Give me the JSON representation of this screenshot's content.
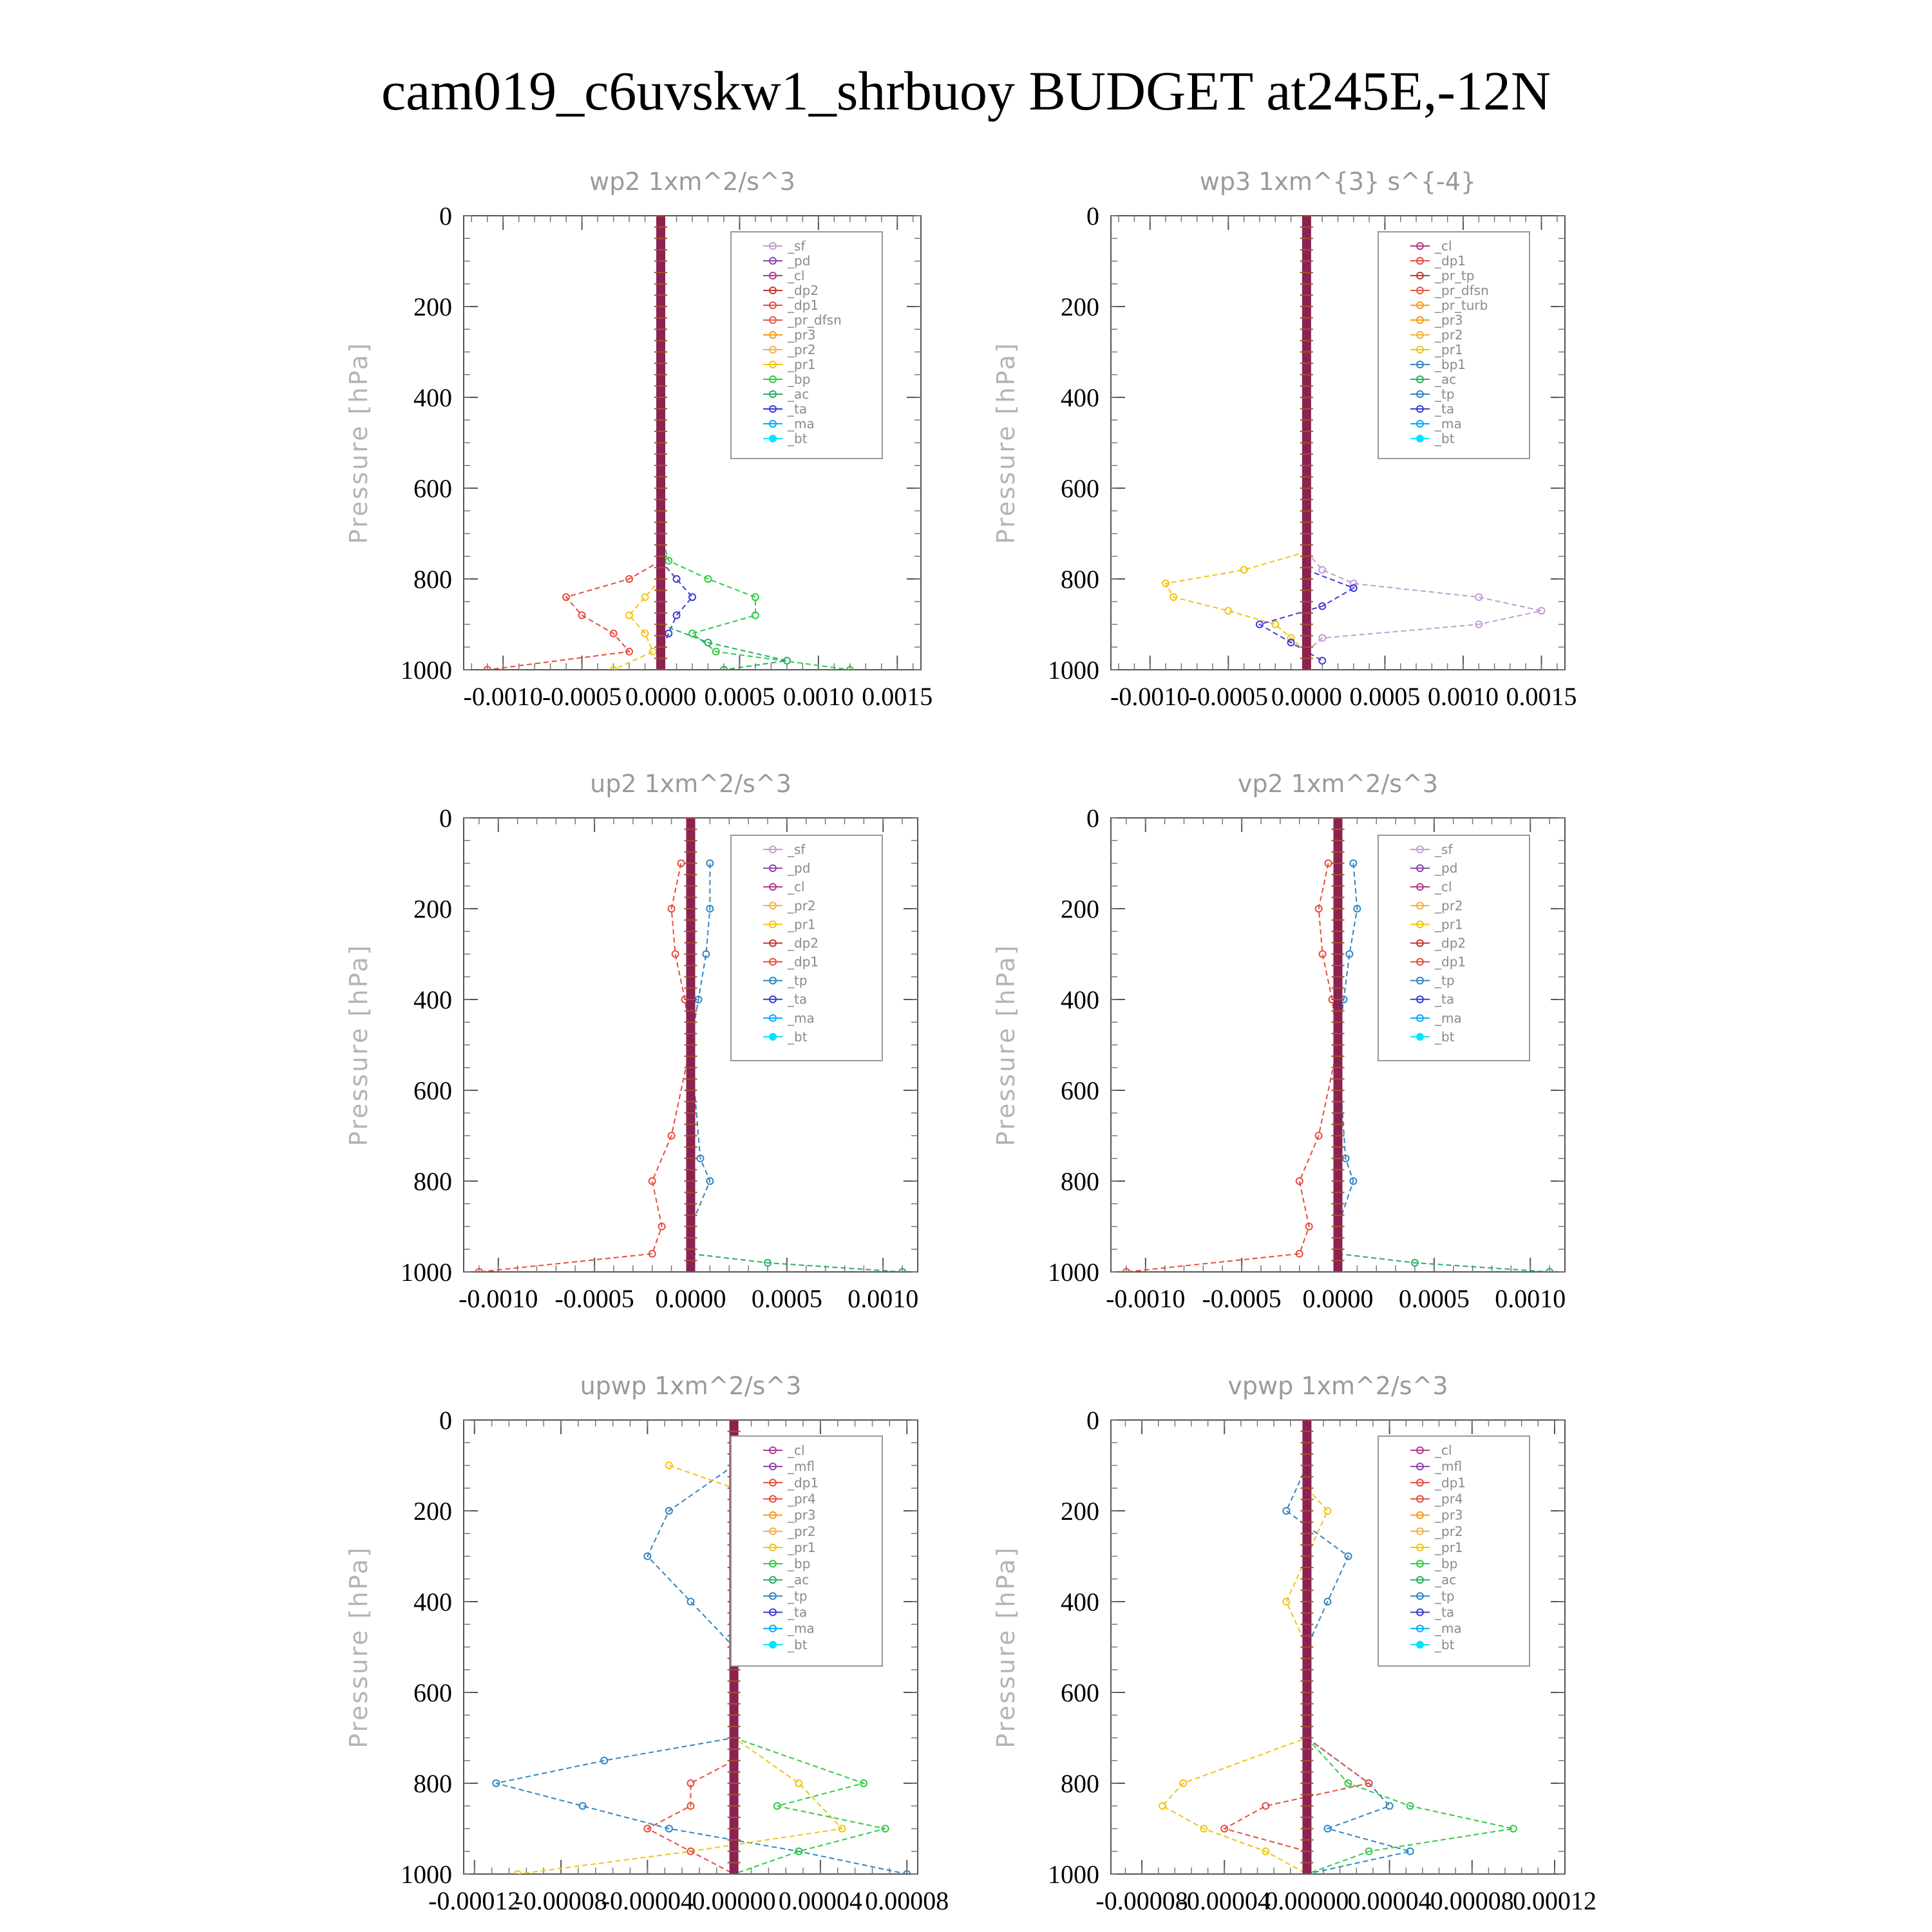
{
  "figure": {
    "title": "cam019_c6uvskw1_shrbuoy  BUDGET at245E,-12N"
  },
  "colors": {
    "_sf": "#c39bd3",
    "_pd": "#8e44ad",
    "_cl": "#b03a8c",
    "_dp2": "#c0392b",
    "_dp1": "#e74c3c",
    "_pr_dfsn": "#e6584a",
    "_pr3": "#f39c12",
    "_pr2": "#f5b041",
    "_pr1": "#f1c40f",
    "_bp": "#2ecc40",
    "_ac": "#27ae60",
    "_tp": "#2e86c1",
    "_ta": "#3b3bd6",
    "_ma": "#00aaff",
    "_bt": "#00e5ff"
  },
  "chart_data": [
    {
      "type": "line",
      "title": "wp2  1xm^2/s^3",
      "ylabel": "Pressure [hPa]",
      "xlim": [
        -0.00125,
        0.00165
      ],
      "ylim": [
        1000,
        0
      ],
      "yticks": [
        0,
        200,
        400,
        600,
        800,
        1000
      ],
      "ytick_labels": [
        "0",
        "200",
        "400",
        "600",
        "800",
        "1000"
      ],
      "xticks": [
        -0.001,
        -0.0005,
        0.0,
        0.0005,
        0.001,
        0.0015
      ],
      "xtick_labels": [
        "-0.0010",
        "-0.0005",
        "0.0000",
        "0.0005",
        "0.0010",
        "0.0015"
      ],
      "legend": [
        "_sf",
        "_pd",
        "_cl",
        "_dp2",
        "_dp1",
        "_pr_dfsn",
        "_pr3",
        "_pr2",
        "_pr1",
        "_bp",
        "_ac",
        "_ta",
        "_ma",
        "_bt"
      ],
      "series": [
        {
          "name": "_bp",
          "y": [
            700,
            760,
            800,
            840,
            880,
            920,
            960,
            1000
          ],
          "x": [
            0.0,
            5e-05,
            0.0003,
            0.0006,
            0.0006,
            0.0002,
            0.00035,
            0.0012
          ]
        },
        {
          "name": "_dp1",
          "y": [
            760,
            800,
            840,
            880,
            920,
            960,
            1000
          ],
          "x": [
            0.0,
            -0.0002,
            -0.0006,
            -0.0005,
            -0.0003,
            -0.0002,
            -0.0011
          ]
        },
        {
          "name": "_pr1",
          "y": [
            800,
            840,
            880,
            920,
            960,
            1000
          ],
          "x": [
            0.0,
            -0.0001,
            -0.0002,
            -0.0001,
            -5e-05,
            -0.0003
          ]
        },
        {
          "name": "_ta",
          "y": [
            760,
            800,
            840,
            880,
            920,
            960,
            1000
          ],
          "x": [
            0.0,
            0.0001,
            0.0002,
            0.0001,
            5e-05,
            0.0,
            0.0
          ]
        },
        {
          "name": "_ac",
          "y": [
            900,
            940,
            980,
            1000
          ],
          "x": [
            0.0,
            0.0003,
            0.0008,
            0.0004
          ]
        }
      ]
    },
    {
      "type": "line",
      "title": "wp3  1xm^{3} s^{-4}",
      "ylabel": "Pressure [hPa]",
      "xlim": [
        -0.00125,
        0.00165
      ],
      "ylim": [
        1000,
        0
      ],
      "yticks": [
        0,
        200,
        400,
        600,
        800,
        1000
      ],
      "ytick_labels": [
        "0",
        "200",
        "400",
        "600",
        "800",
        "1000"
      ],
      "xticks": [
        -0.001,
        -0.0005,
        0.0,
        0.0005,
        0.001,
        0.0015
      ],
      "xtick_labels": [
        "-0.0010",
        "-0.0005",
        "0.0000",
        "0.0005",
        "0.0010",
        "0.0015"
      ],
      "legend": [
        "_cl",
        "_dp1",
        "_pr_tp",
        "_pr_dfsn",
        "_pr_turb",
        "_pr3",
        "_pr2",
        "_pr1",
        "_bp1",
        "_ac",
        "_tp",
        "_ta",
        "_ma",
        "_bt"
      ],
      "series": [
        {
          "name": "_bp1",
          "y": [
            740,
            780,
            810,
            840,
            870,
            900,
            930,
            960,
            1000
          ],
          "x": [
            0.0,
            0.0001,
            0.0003,
            0.0011,
            0.0015,
            0.0011,
            0.0001,
            0.0,
            0.0
          ]
        },
        {
          "name": "_pr1",
          "y": [
            740,
            780,
            810,
            840,
            870,
            900,
            930,
            960,
            1000
          ],
          "x": [
            0.0,
            -0.0004,
            -0.0009,
            -0.00085,
            -0.0005,
            -0.0002,
            -0.0001,
            0.0,
            0.0
          ]
        },
        {
          "name": "_ta",
          "y": [
            780,
            820,
            860,
            900,
            940,
            980
          ],
          "x": [
            0.0,
            0.0003,
            0.0001,
            -0.0003,
            -0.0001,
            0.0001
          ]
        }
      ]
    },
    {
      "type": "line",
      "title": "up2  1xm^2/s^3",
      "ylabel": "Pressure [hPa]",
      "xlim": [
        -0.00118,
        0.00118
      ],
      "ylim": [
        1000,
        0
      ],
      "yticks": [
        0,
        200,
        400,
        600,
        800,
        1000
      ],
      "ytick_labels": [
        "0",
        "200",
        "400",
        "600",
        "800",
        "1000"
      ],
      "xticks": [
        -0.001,
        -0.0005,
        0.0,
        0.0005,
        0.001
      ],
      "xtick_labels": [
        "-0.0010",
        "-0.0005",
        "0.0000",
        "0.0005",
        "0.0010"
      ],
      "legend": [
        "_sf",
        "_pd",
        "_cl",
        "_pr2",
        "_pr1",
        "_dp2",
        "_dp1",
        "_tp",
        "_ta",
        "_ma",
        "_bt"
      ],
      "series": [
        {
          "name": "_dp1",
          "y": [
            100,
            200,
            300,
            400,
            500,
            700,
            800,
            900,
            960,
            1000
          ],
          "x": [
            -5e-05,
            -0.0001,
            -8e-05,
            -3e-05,
            0.0,
            -0.0001,
            -0.0002,
            -0.00015,
            -0.0002,
            -0.0011
          ]
        },
        {
          "name": "_tp",
          "y": [
            100,
            200,
            300,
            400,
            500,
            750,
            800,
            900,
            1000
          ],
          "x": [
            0.0001,
            0.0001,
            8e-05,
            4e-05,
            0.0,
            5e-05,
            0.0001,
            0.0,
            0.0
          ]
        },
        {
          "name": "_ac",
          "y": [
            960,
            980,
            1000
          ],
          "x": [
            0.0,
            0.0004,
            0.0011
          ]
        }
      ]
    },
    {
      "type": "line",
      "title": "vp2  1xm^2/s^3",
      "ylabel": "Pressure [hPa]",
      "xlim": [
        -0.00118,
        0.00118
      ],
      "ylim": [
        1000,
        0
      ],
      "yticks": [
        0,
        200,
        400,
        600,
        800,
        1000
      ],
      "ytick_labels": [
        "0",
        "200",
        "400",
        "600",
        "800",
        "1000"
      ],
      "xticks": [
        -0.001,
        -0.0005,
        0.0,
        0.0005,
        0.001
      ],
      "xtick_labels": [
        "-0.0010",
        "-0.0005",
        "0.0000",
        "0.0005",
        "0.0010"
      ],
      "legend": [
        "_sf",
        "_pd",
        "_cl",
        "_pr2",
        "_pr1",
        "_dp2",
        "_dp1",
        "_tp",
        "_ta",
        "_ma",
        "_bt"
      ],
      "series": [
        {
          "name": "_dp1",
          "y": [
            100,
            200,
            300,
            400,
            500,
            700,
            800,
            900,
            960,
            1000
          ],
          "x": [
            -5e-05,
            -0.0001,
            -8e-05,
            -3e-05,
            0.0,
            -0.0001,
            -0.0002,
            -0.00015,
            -0.0002,
            -0.0011
          ]
        },
        {
          "name": "_tp",
          "y": [
            100,
            200,
            300,
            400,
            500,
            750,
            800,
            900,
            1000
          ],
          "x": [
            8e-05,
            0.0001,
            6e-05,
            3e-05,
            0.0,
            4e-05,
            8e-05,
            0.0,
            0.0
          ]
        },
        {
          "name": "_ac",
          "y": [
            960,
            980,
            1000
          ],
          "x": [
            0.0,
            0.0004,
            0.0011
          ]
        }
      ]
    },
    {
      "type": "line",
      "title": "upwp  1xm^2/s^3",
      "ylabel": "Pressure [hPa]",
      "xlim": [
        -0.000125,
        8.5e-05
      ],
      "ylim": [
        1000,
        0
      ],
      "yticks": [
        0,
        200,
        400,
        600,
        800,
        1000
      ],
      "ytick_labels": [
        "0",
        "200",
        "400",
        "600",
        "800",
        "1000"
      ],
      "xticks": [
        -0.00012,
        -8e-05,
        -4e-05,
        0.0,
        4e-05,
        8e-05
      ],
      "xtick_labels": [
        "-0.00012",
        "-0.00008",
        "-0.00004",
        "0.00000",
        "0.00004",
        "0.00008"
      ],
      "legend": [
        "_cl",
        "_mfl",
        "_dp1",
        "_pr4",
        "_pr3",
        "_pr2",
        "_pr1",
        "_bp",
        "_ac",
        "_tp",
        "_ta",
        "_ma",
        "_bt"
      ],
      "series": [
        {
          "name": "_tp",
          "y": [
            100,
            200,
            300,
            400,
            500,
            700,
            750,
            800,
            850,
            900,
            950,
            1000
          ],
          "x": [
            0.0,
            -3e-05,
            -4e-05,
            -2e-05,
            0.0,
            0.0,
            -6e-05,
            -0.00011,
            -7e-05,
            -3e-05,
            3e-05,
            8e-05
          ]
        },
        {
          "name": "_pr1",
          "y": [
            100,
            150,
            200,
            300,
            400,
            500,
            700,
            800,
            900,
            950,
            1000
          ],
          "x": [
            -3e-05,
            0.0,
            2e-05,
            2e-05,
            1e-05,
            0.0,
            0.0,
            3e-05,
            5e-05,
            -2e-05,
            -0.0001
          ]
        },
        {
          "name": "_bp",
          "y": [
            700,
            800,
            850,
            900,
            950,
            1000
          ],
          "x": [
            0.0,
            6e-05,
            2e-05,
            7e-05,
            3e-05,
            0.0
          ]
        },
        {
          "name": "_dp1",
          "y": [
            750,
            800,
            850,
            900,
            950,
            1000
          ],
          "x": [
            0.0,
            -2e-05,
            -2e-05,
            -4e-05,
            -2e-05,
            0.0
          ]
        }
      ]
    },
    {
      "type": "line",
      "title": "vpwp  1xm^2/s^3",
      "ylabel": "Pressure [hPa]",
      "xlim": [
        -9.5e-05,
        0.000125
      ],
      "ylim": [
        1000,
        0
      ],
      "yticks": [
        0,
        200,
        400,
        600,
        800,
        1000
      ],
      "ytick_labels": [
        "0",
        "200",
        "400",
        "600",
        "800",
        "1000"
      ],
      "xticks": [
        -8e-05,
        -4e-05,
        0.0,
        4e-05,
        8e-05,
        0.00012
      ],
      "xtick_labels": [
        "-0.00008",
        "-0.00004",
        "0.00000",
        "0.00004",
        "0.00008",
        "0.00012"
      ],
      "legend": [
        "_cl",
        "_mfl",
        "_dp1",
        "_pr4",
        "_pr3",
        "_pr2",
        "_pr1",
        "_bp",
        "_ac",
        "_tp",
        "_ta",
        "_ma",
        "_bt"
      ],
      "series": [
        {
          "name": "_tp",
          "y": [
            100,
            200,
            300,
            400,
            500,
            700,
            800,
            850,
            900,
            950,
            1000
          ],
          "x": [
            0.0,
            -1e-05,
            2e-05,
            1e-05,
            0.0,
            0.0,
            3e-05,
            4e-05,
            1e-05,
            5e-05,
            0.0
          ]
        },
        {
          "name": "_pr1",
          "y": [
            150,
            200,
            300,
            400,
            500,
            700,
            800,
            850,
            900,
            950,
            1000
          ],
          "x": [
            0.0,
            1e-05,
            0.0,
            -1e-05,
            0.0,
            0.0,
            -6e-05,
            -7e-05,
            -5e-05,
            -2e-05,
            0.0
          ]
        },
        {
          "name": "_bp",
          "y": [
            700,
            800,
            850,
            900,
            950,
            1000
          ],
          "x": [
            0.0,
            2e-05,
            5e-05,
            0.0001,
            3e-05,
            0.0
          ]
        },
        {
          "name": "_dp1",
          "y": [
            700,
            800,
            850,
            900,
            950,
            1000
          ],
          "x": [
            0.0,
            3e-05,
            -2e-05,
            -4e-05,
            0.0,
            0.0
          ]
        }
      ]
    }
  ]
}
